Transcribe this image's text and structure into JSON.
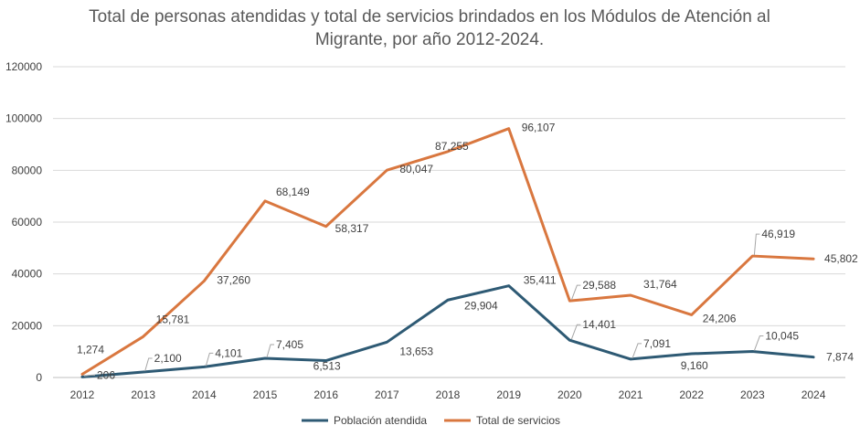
{
  "chart_data": {
    "type": "line",
    "title": "Total de personas atendidas y total de servicios brindados en los Módulos de Atención al Migrante, por año 2012-2024.",
    "xlabel": "",
    "ylabel": "",
    "categories": [
      "2012",
      "2013",
      "2014",
      "2015",
      "2016",
      "2017",
      "2018",
      "2019",
      "2020",
      "2021",
      "2022",
      "2023",
      "2024"
    ],
    "ylim": [
      0,
      120000
    ],
    "yticks": [
      0,
      20000,
      40000,
      60000,
      80000,
      100000,
      120000
    ],
    "ytick_labels": [
      "0",
      "20000",
      "40000",
      "60000",
      "80000",
      "100000",
      "120000"
    ],
    "grid": true,
    "legend": "bottom",
    "series": [
      {
        "name": "Población atendida",
        "color": "#2E5A74",
        "values": [
          206,
          2100,
          4101,
          7405,
          6513,
          13653,
          29904,
          35411,
          14401,
          7091,
          9160,
          10045,
          7874
        ],
        "labels": [
          "206",
          "2,100",
          "4,101",
          "7,405",
          "6,513",
          "13,653",
          "29,904",
          "35,411",
          "14,401",
          "7,091",
          "9,160",
          "10,045",
          "7,874"
        ]
      },
      {
        "name": "Total de servicios",
        "color": "#D9773F",
        "values": [
          1274,
          15781,
          37260,
          68149,
          58317,
          80047,
          87255,
          96107,
          29588,
          31764,
          24206,
          46919,
          45802
        ],
        "labels": [
          "1,274",
          "15,781",
          "37,260",
          "68,149",
          "58,317",
          "80,047",
          "87,255",
          "96,107",
          "29,588",
          "31,764",
          "24,206",
          "46,919",
          "45,802"
        ]
      }
    ]
  }
}
